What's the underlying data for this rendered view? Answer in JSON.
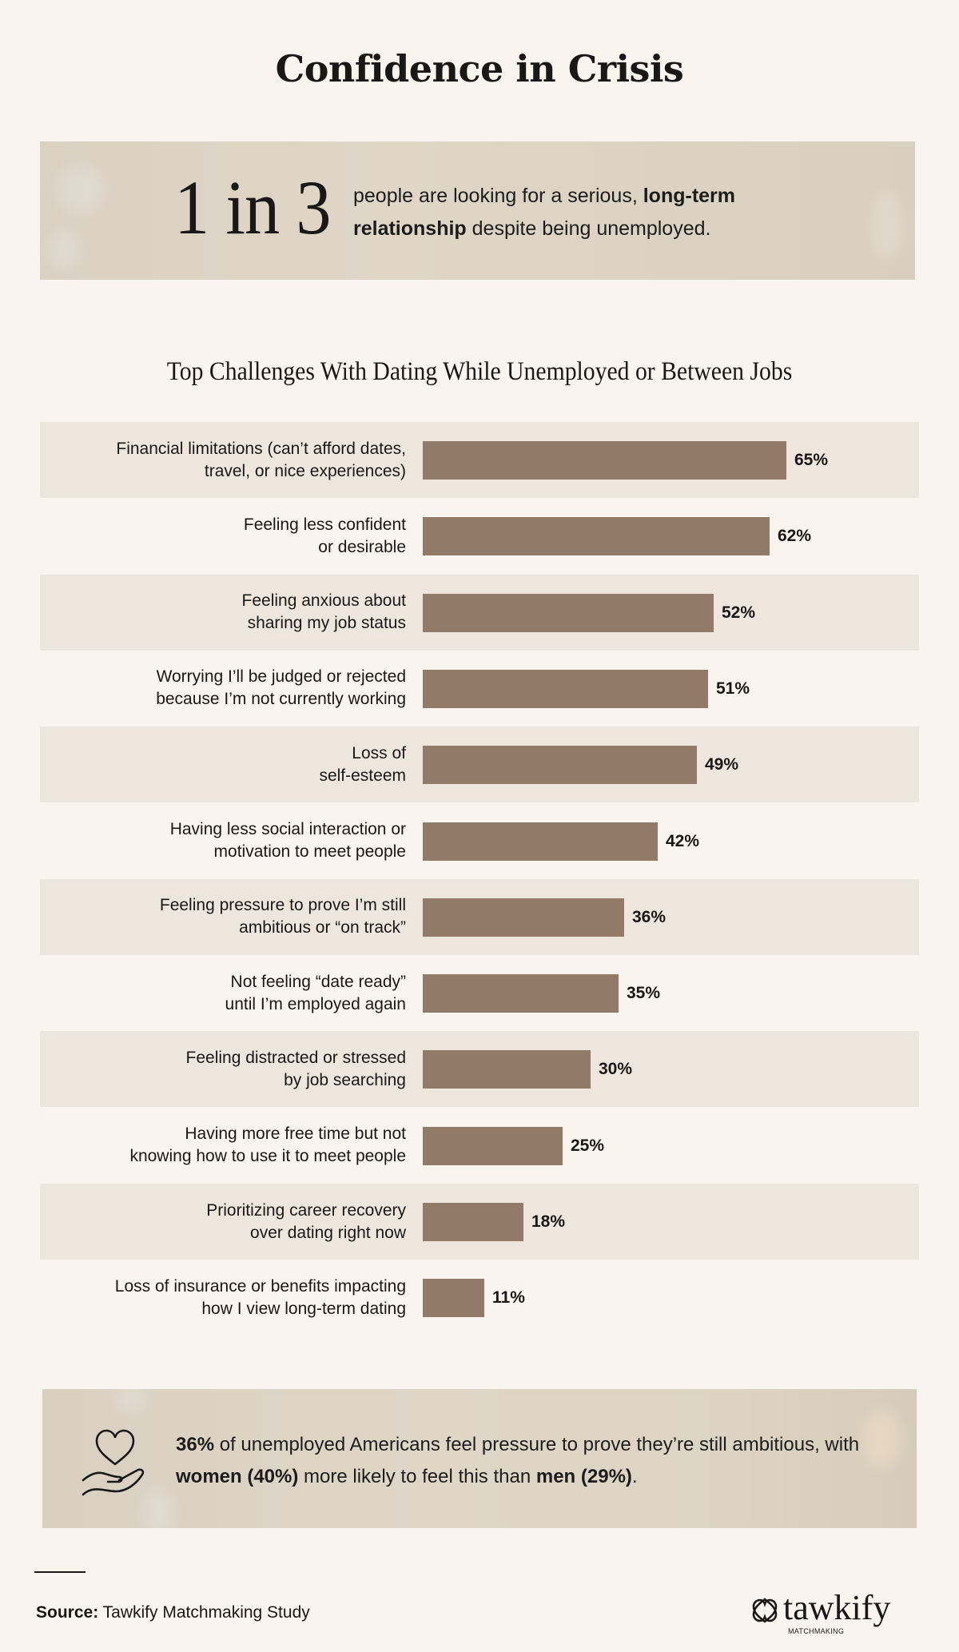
{
  "header": {
    "title": "Confidence in Crisis"
  },
  "stat": {
    "big": "1 in 3",
    "text_1": "people are looking for a serious,",
    "text_bold_1": "long-term",
    "text_bold_2": "relationship",
    "text_2": "despite being unemployed."
  },
  "chart_data": {
    "type": "bar",
    "orientation": "horizontal",
    "title": "Top Challenges With Dating While Unemployed or Between Jobs",
    "unit": "%",
    "xlim": [
      0,
      100
    ],
    "grid": false,
    "colors": {
      "bar": "#917A67",
      "band": "#EEE6DC",
      "background": "#FAF4EE"
    },
    "categories": [
      "Financial limitations (can’t afford dates, travel, or nice experiences)",
      "Feeling less confident or desirable",
      "Feeling anxious about sharing my job status",
      "Worrying I’ll be judged or rejected because I’m not currently working",
      "Loss of self-esteem",
      "Having less social interaction or motivation to meet people",
      "Feeling pressure to prove I’m still ambitious or “on track”",
      "Not feeling “date ready” until I’m employed again",
      "Feeling distracted or stressed by job searching",
      "Having more free time but not knowing how to use it to meet people",
      "Prioritizing career recovery over dating right now",
      "Loss of insurance or benefits impacting how I view long-term dating"
    ],
    "label_lines": [
      [
        "Financial limitations (can’t afford dates,",
        "travel, or nice experiences)"
      ],
      [
        "Feeling less confident",
        "or desirable"
      ],
      [
        "Feeling anxious about",
        "sharing my job status"
      ],
      [
        "Worrying I’ll be judged or rejected",
        "because I’m not currently working"
      ],
      [
        "Loss of",
        "self-esteem"
      ],
      [
        "Having less social interaction or",
        "motivation to meet people"
      ],
      [
        "Feeling pressure to prove I’m still",
        "ambitious or “on track”"
      ],
      [
        "Not feeling “date ready”",
        "until I’m employed again"
      ],
      [
        "Feeling distracted or stressed",
        "by job searching"
      ],
      [
        "Having more free time but not",
        "knowing how to use it to meet people"
      ],
      [
        "Prioritizing career recovery",
        "over dating right now"
      ],
      [
        "Loss of insurance or benefits impacting",
        "how I view long-term dating"
      ]
    ],
    "values": [
      65,
      62,
      52,
      51,
      49,
      42,
      36,
      35,
      30,
      25,
      18,
      11
    ],
    "value_labels": [
      "65%",
      "62%",
      "52%",
      "51%",
      "49%",
      "42%",
      "36%",
      "35%",
      "30%",
      "25%",
      "18%",
      "11%"
    ]
  },
  "callout": {
    "icon": "heart-in-hand-icon",
    "bold_1": "36%",
    "text_1": "of unemployed Americans feel pressure to prove they’re still ambitious, with",
    "bold_2": "women (40%)",
    "text_2": "more likely to feel this than",
    "bold_3": "men (29%)",
    "text_3": "."
  },
  "footer": {
    "source_label": "Source:",
    "source_text": "Tawkify Matchmaking Study",
    "logo_word": "tawkify",
    "logo_sub": "MATCHMAKING"
  }
}
